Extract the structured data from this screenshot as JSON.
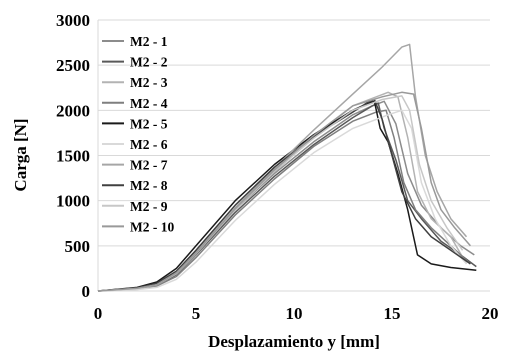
{
  "chart_data": {
    "type": "line",
    "title": "",
    "xlabel": "Desplazamiento  y [mm]",
    "ylabel": "Carga [N]",
    "xlim": [
      0,
      20
    ],
    "ylim": [
      0,
      3000
    ],
    "xticks": [
      0,
      5,
      10,
      15,
      20
    ],
    "yticks": [
      0,
      500,
      1000,
      1500,
      2000,
      2500,
      3000
    ],
    "grid": "horizontal",
    "legend_position": "top-left",
    "series": [
      {
        "name": "M2 - 1",
        "color": "#8c8c8c",
        "points": [
          [
            0,
            0
          ],
          [
            2,
            30
          ],
          [
            3,
            70
          ],
          [
            4,
            200
          ],
          [
            5,
            420
          ],
          [
            7,
            900
          ],
          [
            9,
            1300
          ],
          [
            11,
            1650
          ],
          [
            13,
            1950
          ],
          [
            14,
            2050
          ],
          [
            14.6,
            2100
          ],
          [
            15.2,
            1850
          ],
          [
            15.8,
            1300
          ],
          [
            16.5,
            950
          ],
          [
            17.5,
            700
          ],
          [
            18.5,
            500
          ],
          [
            19.2,
            400
          ]
        ]
      },
      {
        "name": "M2 - 2",
        "color": "#595959",
        "points": [
          [
            0,
            0
          ],
          [
            2,
            25
          ],
          [
            3,
            60
          ],
          [
            4,
            180
          ],
          [
            5,
            400
          ],
          [
            7,
            870
          ],
          [
            9,
            1270
          ],
          [
            11,
            1620
          ],
          [
            13,
            1920
          ],
          [
            14,
            2050
          ],
          [
            14.3,
            2080
          ],
          [
            14.6,
            1800
          ],
          [
            15.2,
            1450
          ],
          [
            15.8,
            1000
          ],
          [
            16.5,
            800
          ],
          [
            17.5,
            550
          ],
          [
            18.5,
            400
          ],
          [
            19.3,
            270
          ]
        ]
      },
      {
        "name": "M2 - 3",
        "color": "#b3b3b3",
        "points": [
          [
            0,
            0
          ],
          [
            2,
            25
          ],
          [
            3,
            65
          ],
          [
            4,
            190
          ],
          [
            5,
            410
          ],
          [
            7,
            900
          ],
          [
            9,
            1320
          ],
          [
            11,
            1700
          ],
          [
            13,
            2050
          ],
          [
            14.8,
            2200
          ],
          [
            15.3,
            2150
          ],
          [
            15.8,
            1700
          ],
          [
            16.3,
            1100
          ],
          [
            17,
            800
          ],
          [
            18,
            600
          ],
          [
            18.8,
            300
          ]
        ]
      },
      {
        "name": "M2 - 4",
        "color": "#7f7f7f",
        "points": [
          [
            0,
            0
          ],
          [
            2,
            20
          ],
          [
            3,
            55
          ],
          [
            4,
            160
          ],
          [
            5,
            370
          ],
          [
            7,
            840
          ],
          [
            9,
            1240
          ],
          [
            11,
            1600
          ],
          [
            13,
            1880
          ],
          [
            14.2,
            1980
          ],
          [
            14.7,
            2000
          ],
          [
            15.1,
            1700
          ],
          [
            15.6,
            1200
          ],
          [
            16.2,
            900
          ],
          [
            17,
            700
          ],
          [
            18,
            500
          ],
          [
            19,
            300
          ]
        ]
      },
      {
        "name": "M2 - 5",
        "color": "#1a1a1a",
        "points": [
          [
            0,
            0
          ],
          [
            2,
            40
          ],
          [
            3,
            100
          ],
          [
            4,
            250
          ],
          [
            5,
            500
          ],
          [
            7,
            1000
          ],
          [
            9,
            1400
          ],
          [
            11,
            1730
          ],
          [
            13,
            2000
          ],
          [
            13.8,
            2080
          ],
          [
            14.1,
            2100
          ],
          [
            14.4,
            1800
          ],
          [
            14.8,
            1650
          ],
          [
            15.3,
            1300
          ],
          [
            15.8,
            900
          ],
          [
            16.3,
            400
          ],
          [
            17,
            300
          ],
          [
            18,
            260
          ],
          [
            19.3,
            230
          ]
        ]
      },
      {
        "name": "M2 - 6",
        "color": "#d9d9d9",
        "points": [
          [
            0,
            0
          ],
          [
            2,
            15
          ],
          [
            3,
            40
          ],
          [
            4,
            130
          ],
          [
            5,
            320
          ],
          [
            7,
            780
          ],
          [
            9,
            1180
          ],
          [
            11,
            1530
          ],
          [
            13,
            1800
          ],
          [
            14.8,
            1950
          ],
          [
            15.5,
            2000
          ],
          [
            16,
            1800
          ],
          [
            16.5,
            1200
          ],
          [
            17.2,
            800
          ],
          [
            18,
            500
          ],
          [
            18.8,
            300
          ]
        ]
      },
      {
        "name": "M2 - 7",
        "color": "#a6a6a6",
        "points": [
          [
            0,
            0
          ],
          [
            2,
            30
          ],
          [
            3,
            75
          ],
          [
            4,
            210
          ],
          [
            5,
            430
          ],
          [
            7,
            920
          ],
          [
            9,
            1360
          ],
          [
            11,
            1780
          ],
          [
            13,
            2180
          ],
          [
            14.5,
            2480
          ],
          [
            15.5,
            2700
          ],
          [
            15.9,
            2730
          ],
          [
            16.2,
            2150
          ],
          [
            16.7,
            1500
          ],
          [
            17.3,
            1100
          ],
          [
            18,
            800
          ],
          [
            18.8,
            600
          ]
        ]
      },
      {
        "name": "M2 - 8",
        "color": "#404040",
        "points": [
          [
            0,
            0
          ],
          [
            2,
            35
          ],
          [
            3,
            85
          ],
          [
            4,
            220
          ],
          [
            5,
            450
          ],
          [
            7,
            950
          ],
          [
            9,
            1370
          ],
          [
            11,
            1710
          ],
          [
            13,
            1980
          ],
          [
            13.7,
            2080
          ],
          [
            14.1,
            2120
          ],
          [
            14.5,
            1900
          ],
          [
            15,
            1500
          ],
          [
            15.5,
            1100
          ],
          [
            16.2,
            800
          ],
          [
            17,
            600
          ],
          [
            18,
            450
          ],
          [
            19,
            300
          ]
        ]
      },
      {
        "name": "M2 - 9",
        "color": "#c7c7c7",
        "points": [
          [
            0,
            0
          ],
          [
            2,
            28
          ],
          [
            3,
            68
          ],
          [
            4,
            200
          ],
          [
            5,
            420
          ],
          [
            7,
            900
          ],
          [
            9,
            1330
          ],
          [
            11,
            1690
          ],
          [
            13,
            2000
          ],
          [
            14.5,
            2120
          ],
          [
            15.5,
            2160
          ],
          [
            15.9,
            2000
          ],
          [
            16.4,
            1400
          ],
          [
            17,
            1000
          ],
          [
            17.8,
            700
          ],
          [
            18.6,
            450
          ]
        ]
      },
      {
        "name": "M2 - 10",
        "color": "#999999",
        "points": [
          [
            0,
            0
          ],
          [
            2,
            30
          ],
          [
            3,
            70
          ],
          [
            4,
            200
          ],
          [
            5,
            420
          ],
          [
            7,
            910
          ],
          [
            9,
            1340
          ],
          [
            11,
            1720
          ],
          [
            13,
            2050
          ],
          [
            14.5,
            2150
          ],
          [
            15.5,
            2200
          ],
          [
            16.1,
            2180
          ],
          [
            16.5,
            1800
          ],
          [
            17,
            1200
          ],
          [
            17.5,
            900
          ],
          [
            18.2,
            700
          ],
          [
            19,
            500
          ]
        ]
      }
    ]
  }
}
